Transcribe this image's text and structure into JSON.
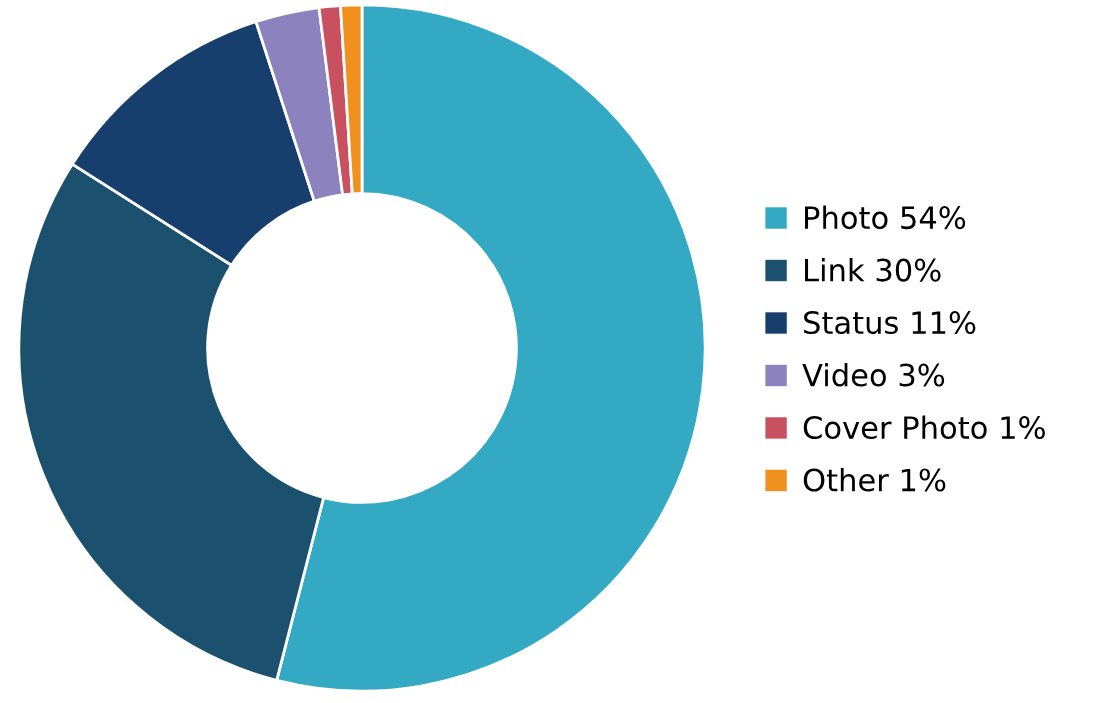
{
  "chart_data": {
    "type": "donut",
    "categories": [
      "Photo 54%",
      "Link 30%",
      "Status 11%",
      "Video 3%",
      "Cover Photo 1%",
      "Other 1%"
    ],
    "values": [
      54,
      30,
      11,
      3,
      1,
      1
    ],
    "colors": [
      "#34a9c3",
      "#1b516f",
      "#173f6e",
      "#8c82bd",
      "#c9505e",
      "#f0901e"
    ],
    "legend": "right"
  }
}
